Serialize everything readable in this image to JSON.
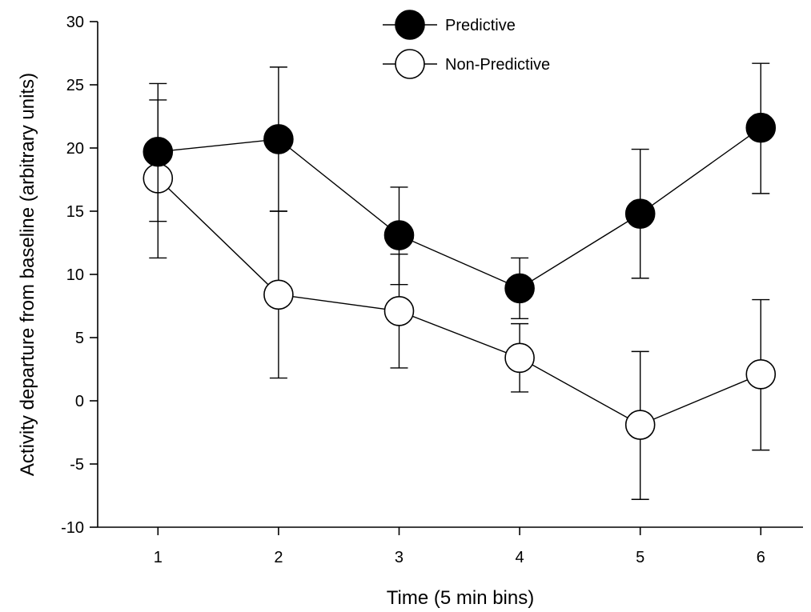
{
  "chart_data": {
    "type": "line",
    "xlabel": "Time (5 min bins)",
    "ylabel": "Activity departure from baseline (arbitrary units)",
    "xlim": [
      0.5,
      6.35
    ],
    "ylim": [
      -10,
      30
    ],
    "x": [
      1,
      2,
      3,
      4,
      5,
      6
    ],
    "xticks": [
      "1",
      "2",
      "3",
      "4",
      "5",
      "6"
    ],
    "yticks": [
      "-10",
      "-5",
      "0",
      "5",
      "10",
      "15",
      "20",
      "25",
      "30"
    ],
    "legend_position": "top-center",
    "grid": false,
    "series": [
      {
        "name": "Predictive",
        "marker": "filled-circle",
        "color": "#000000",
        "values": [
          19.7,
          20.7,
          13.1,
          8.9,
          14.8,
          21.6
        ],
        "err_upper": [
          25.1,
          26.4,
          16.9,
          11.3,
          19.9,
          26.7
        ],
        "err_lower": [
          14.2,
          15.0,
          9.2,
          6.5,
          9.7,
          16.4
        ]
      },
      {
        "name": "Non-Predictive",
        "marker": "open-circle",
        "color": "#ffffff",
        "values": [
          17.6,
          8.4,
          7.1,
          3.4,
          -1.9,
          2.1
        ],
        "err_upper": [
          23.8,
          15.0,
          11.6,
          6.1,
          3.9,
          8.0
        ],
        "err_lower": [
          11.3,
          1.8,
          2.6,
          0.7,
          -7.8,
          -3.9
        ]
      }
    ]
  }
}
